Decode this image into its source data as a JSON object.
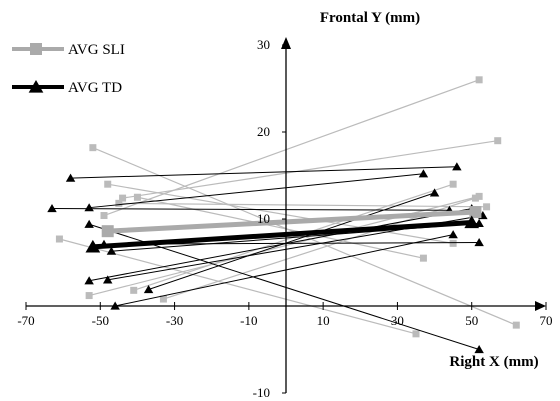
{
  "chart_data": {
    "type": "scatter",
    "xlabel": "Right X (mm)",
    "ylabel": "Frontal Y (mm)",
    "xlim": [
      -70,
      70
    ],
    "ylim": [
      -10,
      30
    ],
    "x_ticks": [
      -70,
      -50,
      -30,
      -10,
      10,
      30,
      50,
      70
    ],
    "y_ticks": [
      -10,
      0,
      10,
      20,
      30
    ],
    "legend_position": "top-left",
    "colors": {
      "sli_thin": "#bbbbbb",
      "sli_avg": "#aaaaaa",
      "td": "#000000",
      "marker_sli": "#bbbbbb",
      "marker_td": "#000000"
    },
    "series": [
      {
        "name": "AVG SLI",
        "marker": "square",
        "average": [
          [
            -48,
            8.6
          ],
          [
            51,
            10.8
          ]
        ],
        "subjects": [
          [
            [
              -52,
              18.2
            ],
            [
              62,
              -2.2
            ]
          ],
          [
            [
              -49,
              10.4
            ],
            [
              52,
              26.0
            ]
          ],
          [
            [
              -44,
              12.4
            ],
            [
              57,
              19.0
            ]
          ],
          [
            [
              -48,
              14.0
            ],
            [
              45,
              7.2
            ]
          ],
          [
            [
              -61,
              7.7
            ],
            [
              35,
              -3.2
            ]
          ],
          [
            [
              -53,
              1.2
            ],
            [
              52,
              12.6
            ]
          ],
          [
            [
              -41,
              1.8
            ],
            [
              45,
              14.0
            ]
          ],
          [
            [
              -33,
              0.8
            ],
            [
              51,
              12.4
            ]
          ],
          [
            [
              -45,
              11.8
            ],
            [
              54,
              11.4
            ]
          ],
          [
            [
              -40,
              12.5
            ],
            [
              37,
              5.5
            ]
          ]
        ]
      },
      {
        "name": "AVG TD",
        "marker": "triangle",
        "average": [
          [
            -52,
            6.8
          ],
          [
            50,
            9.6
          ]
        ],
        "subjects": [
          [
            [
              -58,
              14.7
            ],
            [
              46,
              16.0
            ]
          ],
          [
            [
              -53,
              11.3
            ],
            [
              37,
              15.2
            ]
          ],
          [
            [
              -63,
              11.2
            ],
            [
              44,
              11.0
            ]
          ],
          [
            [
              -53,
              9.4
            ],
            [
              52,
              -5.0
            ]
          ],
          [
            [
              -53,
              2.9
            ],
            [
              50,
              11.2
            ]
          ],
          [
            [
              -48,
              3.0
            ],
            [
              53,
              10.4
            ]
          ],
          [
            [
              -49,
              7.1
            ],
            [
              52,
              7.3
            ]
          ],
          [
            [
              -37,
              1.9
            ],
            [
              40,
              13.0
            ]
          ],
          [
            [
              -46,
              0.0
            ],
            [
              45,
              8.2
            ]
          ],
          [
            [
              -47,
              6.3
            ],
            [
              52,
              9.5
            ]
          ]
        ]
      }
    ]
  }
}
